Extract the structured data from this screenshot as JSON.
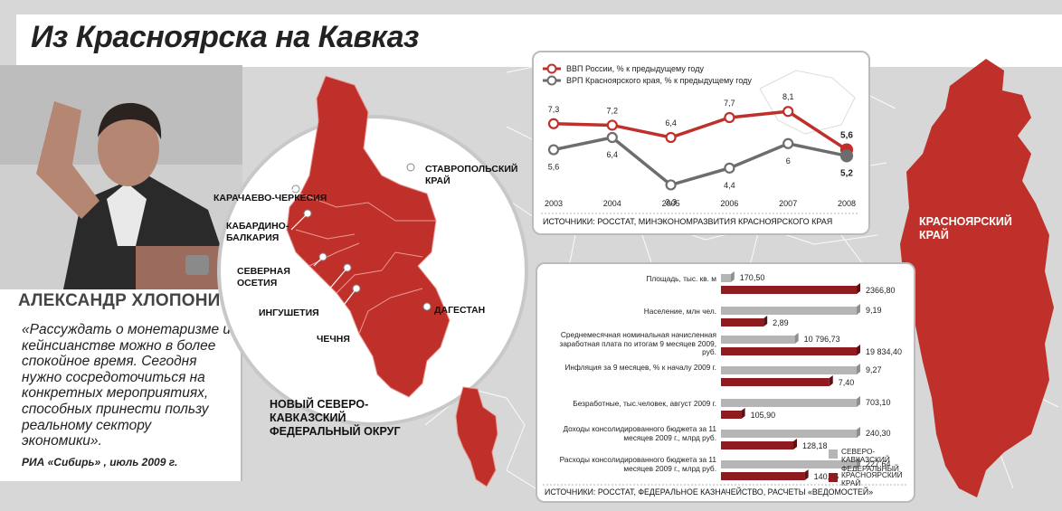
{
  "title": "Из Красноярска на Кавказ",
  "person": {
    "name": "АЛЕКСАНДР ХЛОПОНИН",
    "quote": "«Рассуждать о монетаризме и кейнсианстве можно в более спокойное время. Сегодня нужно сосредоточиться на конкретных мероприятиях, способных принести пользу реальному сектору экономики».",
    "source": "РИА «Сибирь» , июль 2009 г."
  },
  "regions": {
    "karachay": "КАРАЧАЕВО-ЧЕРКЕСИЯ",
    "kabardino": "КАБАРДИНО-БАЛКАРИЯ",
    "ossetia": "СЕВЕРНАЯ ОСЕТИЯ",
    "ingushetia": "ИНГУШЕТИЯ",
    "chechnya": "ЧЕЧНЯ",
    "stavropol": "СТАВРОПОЛЬСКИЙ КРАЙ",
    "dagestan": "ДАГЕСТАН",
    "nkfo": "НОВЫЙ СЕВЕРО-КАВКАЗСКИЙ ФЕДЕРАЛЬНЫЙ ОКРУГ",
    "krasnoyarsk": "КРАСНОЯРСКИЙ КРАЙ"
  },
  "colors": {
    "red": "#c0302a",
    "darkred": "#8e1b1f",
    "gray": "#6d6d6d",
    "lightgray": "#b5b5b5"
  },
  "chart_data": [
    {
      "type": "line",
      "x": [
        "2003",
        "2004",
        "2005",
        "2006",
        "2007",
        "2008"
      ],
      "series": [
        {
          "name": "ВВП России, % к предыдущему году",
          "values": [
            7.3,
            7.2,
            6.4,
            7.7,
            8.1,
            5.6
          ],
          "labels": [
            "7,3",
            "7,2",
            "6,4",
            "7,7",
            "8,1",
            "5,6"
          ]
        },
        {
          "name": "ВРП Красноярского края, % к предыдущему году",
          "values": [
            5.6,
            6.4,
            3.3,
            4.4,
            6,
            5.2
          ],
          "labels": [
            "5,6",
            "6,4",
            "3,3",
            "4,4",
            "6",
            "5,2"
          ]
        }
      ],
      "source": "ИСТОЧНИКИ: РОССТАТ, МИНЭКОНОМРАЗВИТИЯ КРАСНОЯРСКОГО КРАЯ",
      "ylim": [
        2.5,
        9
      ]
    },
    {
      "type": "bar",
      "categories": [
        "Площадь, тыс. кв. м",
        "Население, млн чел.",
        "Среднемесячная номинальная начисленная заработная плата по итогам 9 месяцев 2009, руб.",
        "Инфляция за 9 месяцев, % к началу 2009 г.",
        "Безработные, тыс.человек, август 2009 г.",
        "Доходы консолидированного бюджета за 11 месяцев 2009 г., млрд руб.",
        "Расходы консолидированного бюджета за 11 месяцев 2009 г., млрд руб."
      ],
      "series": [
        {
          "name": "СЕВЕРО-КАВКАЗСКИЙ ФЕДЕРАЛЬНЫЙ ОКРУГ",
          "values": [
            170.5,
            9.19,
            10796.73,
            9.27,
            703.1,
            240.3,
            227.64
          ],
          "labels": [
            "170,50",
            "9,19",
            "10 796,73",
            "9,27",
            "703,10",
            "240,30",
            "227,64"
          ]
        },
        {
          "name": "КРАСНОЯРСКИЙ КРАЙ",
          "values": [
            2366.8,
            2.89,
            19834.4,
            7.4,
            105.9,
            128.18,
            140.56
          ],
          "labels": [
            "2366,80",
            "2,89",
            "19 834,40",
            "7,40",
            "105,90",
            "128,18",
            "140,56"
          ]
        }
      ],
      "source": "ИСТОЧНИКИ: РОССТАТ, ФЕДЕРАЛЬНОЕ КАЗНАЧЕЙСТВО, РАСЧЕТЫ «ВЕДОМОСТЕЙ»"
    }
  ]
}
